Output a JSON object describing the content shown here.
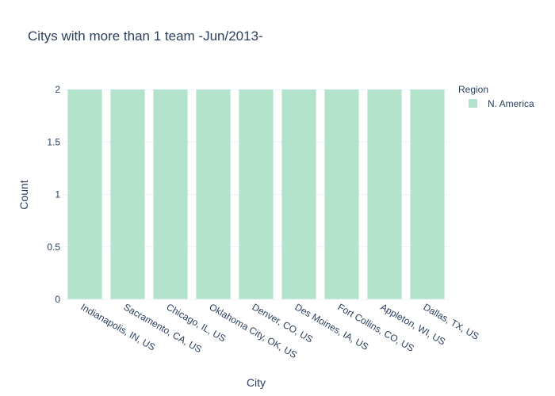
{
  "chart_data": {
    "type": "bar",
    "title": "Citys with more than 1 team -Jun/2013-",
    "xlabel": "City",
    "ylabel": "Count",
    "categories": [
      "Indianapolis, IN, US",
      "Sacramento, CA, US",
      "Chicago, IL, US",
      "Oklahoma City, OK, US",
      "Denver, CO, US",
      "Des Moines, IA, US",
      "Fort Collins, CO, US",
      "Appleton, WI, US",
      "Dallas, TX, US"
    ],
    "series": [
      {
        "name": "N. America",
        "values": [
          2,
          2,
          2,
          2,
          2,
          2,
          2,
          2,
          2
        ],
        "color": "#b3e2cd"
      }
    ],
    "ylim": [
      0,
      2
    ],
    "yticks": [
      "0",
      "0.5",
      "1",
      "1.5",
      "2"
    ],
    "legend": {
      "title": "Region",
      "placement": "top-right"
    },
    "grid": true
  }
}
